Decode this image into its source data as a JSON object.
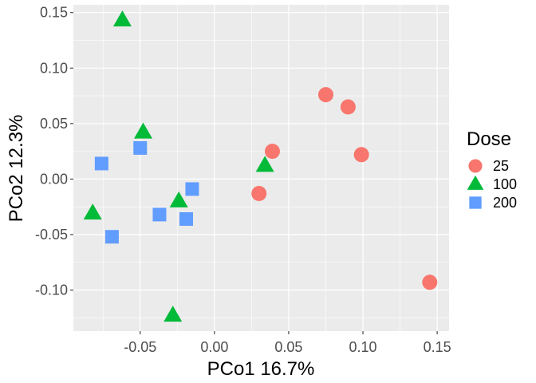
{
  "chart_data": {
    "type": "scatter",
    "xlabel": "PCo1 16.7%",
    "ylabel": "PCo2 12.3%",
    "xlim": [
      -0.095,
      0.158
    ],
    "ylim": [
      -0.137,
      0.157
    ],
    "x_ticks": [
      -0.05,
      0.0,
      0.05,
      0.1,
      0.15
    ],
    "x_tick_labels": [
      "-0.05",
      "0.00",
      "0.05",
      "0.10",
      "0.15"
    ],
    "y_ticks": [
      -0.1,
      -0.05,
      0.0,
      0.05,
      0.1,
      0.15
    ],
    "y_tick_labels": [
      "-0.10",
      "-0.05",
      "0.00",
      "0.05",
      "0.10",
      "0.15"
    ],
    "grid": true,
    "background": "#ebebeb",
    "legend": {
      "title": "Dose",
      "position": "right",
      "entries": [
        {
          "label": "25",
          "shape": "circle",
          "color": "#f8766d"
        },
        {
          "label": "100",
          "shape": "triangle",
          "color": "#00ba38"
        },
        {
          "label": "200",
          "shape": "square",
          "color": "#619cff"
        }
      ]
    },
    "series": [
      {
        "name": "25",
        "shape": "circle",
        "color": "#f8766d",
        "points": [
          [
            0.075,
            0.076
          ],
          [
            0.09,
            0.065
          ],
          [
            0.099,
            0.022
          ],
          [
            0.039,
            0.025
          ],
          [
            0.03,
            -0.013
          ],
          [
            0.145,
            -0.093
          ]
        ]
      },
      {
        "name": "100",
        "shape": "triangle",
        "color": "#00ba38",
        "points": [
          [
            -0.062,
            0.143
          ],
          [
            -0.048,
            0.042
          ],
          [
            0.034,
            0.012
          ],
          [
            -0.024,
            -0.02
          ],
          [
            -0.082,
            -0.031
          ],
          [
            -0.028,
            -0.123
          ]
        ]
      },
      {
        "name": "200",
        "shape": "square",
        "color": "#619cff",
        "points": [
          [
            -0.05,
            0.028
          ],
          [
            -0.076,
            0.014
          ],
          [
            -0.015,
            -0.009
          ],
          [
            -0.037,
            -0.032
          ],
          [
            -0.019,
            -0.036
          ],
          [
            -0.069,
            -0.052
          ]
        ]
      }
    ]
  }
}
